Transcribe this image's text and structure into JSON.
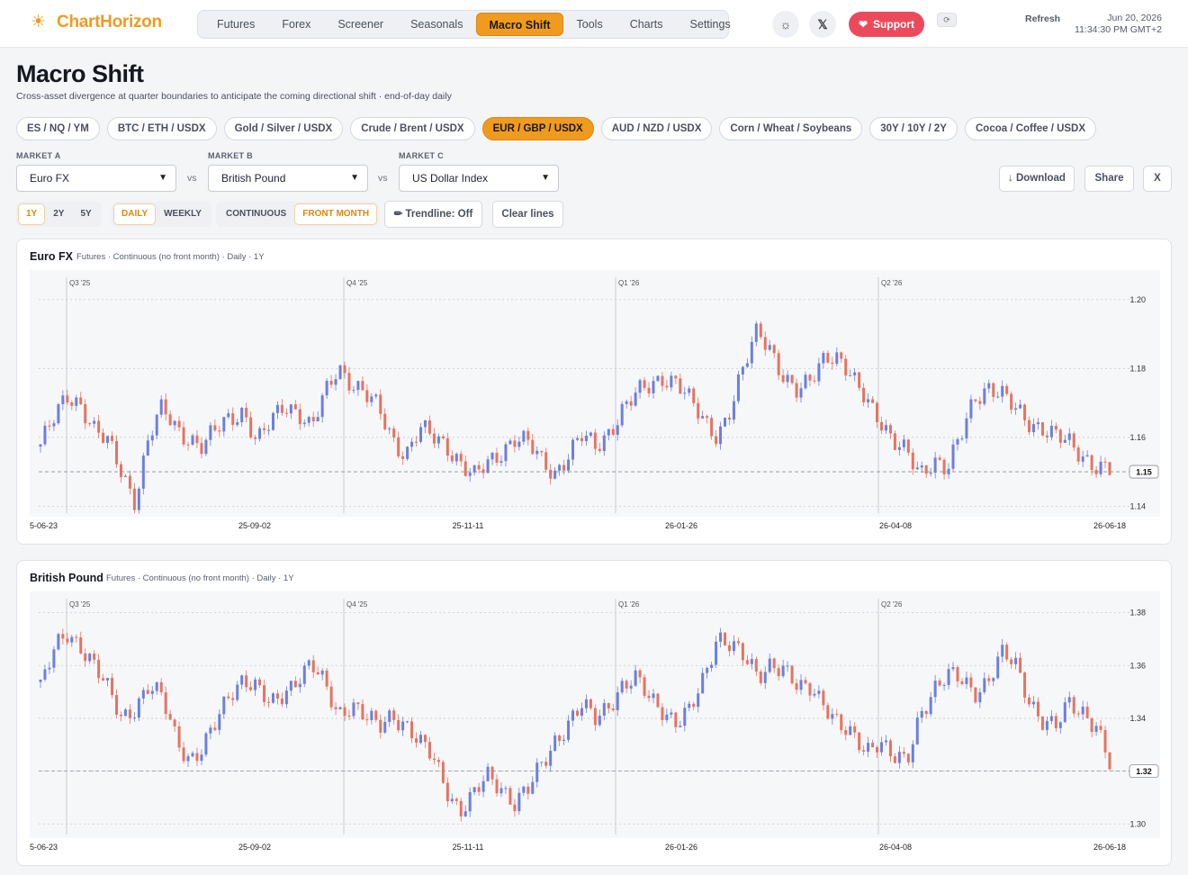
{
  "app": {
    "brand": "ChartHorizon",
    "logo_icon": "sun-icon",
    "accent": "#f19b1e"
  },
  "nav": {
    "items": [
      "Futures",
      "Forex",
      "Screener",
      "Seasonals",
      "Macro Shift",
      "Tools",
      "Charts",
      "Settings"
    ],
    "active": "Macro Shift"
  },
  "header_actions": {
    "theme_icon": "sun-icon",
    "x_icon": "x-logo-icon",
    "support_label": "Support",
    "support_color": "#ec4a5c",
    "refresh_label": "Refresh",
    "refresh_icon": "refresh-icon"
  },
  "datetime": {
    "date": "Jun 20, 2026",
    "time": "11:34:30 PM GMT+2"
  },
  "page": {
    "title": "Macro Shift",
    "subtitle": "Cross-asset divergence at quarter boundaries to anticipate the coming directional shift · end-of-day daily"
  },
  "presets": {
    "items": [
      "ES / NQ / YM",
      "BTC / ETH / USDX",
      "Gold / Silver / USDX",
      "Crude / Brent / USDX",
      "EUR / GBP / USDX",
      "AUD / NZD / USDX",
      "Corn / Wheat / Soybeans",
      "30Y / 10Y / 2Y",
      "Cocoa / Coffee / USDX"
    ],
    "active": "EUR / GBP / USDX"
  },
  "markets": {
    "a_label": "MARKET A",
    "a_value": "Euro FX",
    "b_label": "MARKET B",
    "b_value": "British Pound",
    "c_label": "MARKET C",
    "c_value": "US Dollar Index",
    "vs": "vs"
  },
  "actions": {
    "download": "↓ Download",
    "share": "Share",
    "x": "X"
  },
  "controls": {
    "ranges": [
      "1Y",
      "2Y",
      "5Y"
    ],
    "range_active": "1Y",
    "intervals": [
      "DAILY",
      "WEEKLY"
    ],
    "interval_active": "DAILY",
    "contracts": [
      "CONTINUOUS",
      "FRONT MONTH"
    ],
    "contract_active": "FRONT MONTH",
    "trendline": "✏ Trendline: Off",
    "clear": "Clear lines"
  },
  "colors": {
    "up": "#6b80de",
    "down": "#e8735e",
    "grid": "#c9ccd3"
  },
  "chart_data": [
    {
      "type": "candlestick",
      "title": "Euro FX",
      "subtitle": "Futures · Continuous (no front month) · Daily · 1Y",
      "quarters": [
        "Q3 '25",
        "Q4 '25",
        "Q1 '26",
        "Q2 '26"
      ],
      "x_ticks": [
        "5-06-23",
        "25-09-02",
        "25-11-11",
        "26-01-26",
        "26-04-08",
        "26-06-18"
      ],
      "y_ticks": [
        "1.20",
        "1.18",
        "1.16",
        "1.14"
      ],
      "ylim": [
        1.138,
        1.207
      ],
      "last_price": "1.15",
      "closes": [
        1.158,
        1.165,
        1.172,
        1.17,
        1.162,
        1.158,
        1.15,
        1.142,
        1.16,
        1.168,
        1.163,
        1.16,
        1.157,
        1.162,
        1.166,
        1.168,
        1.158,
        1.164,
        1.17,
        1.168,
        1.162,
        1.172,
        1.181,
        1.176,
        1.172,
        1.168,
        1.16,
        1.155,
        1.162,
        1.16,
        1.158,
        1.153,
        1.148,
        1.152,
        1.156,
        1.16,
        1.158,
        1.153,
        1.15,
        1.155,
        1.16,
        1.157,
        1.162,
        1.168,
        1.172,
        1.175,
        1.178,
        1.176,
        1.17,
        1.165,
        1.161,
        1.168,
        1.18,
        1.192,
        1.186,
        1.176,
        1.172,
        1.178,
        1.185,
        1.182,
        1.176,
        1.172,
        1.166,
        1.158,
        1.155,
        1.15,
        1.154,
        1.15,
        1.16,
        1.172,
        1.175,
        1.172,
        1.168,
        1.165,
        1.163,
        1.16,
        1.158,
        1.155,
        1.152,
        1.15
      ]
    },
    {
      "type": "candlestick",
      "title": "British Pound",
      "subtitle": "Futures · Continuous (no front month) · Daily · 1Y",
      "quarters": [
        "Q3 '25",
        "Q4 '25",
        "Q1 '26",
        "Q2 '26"
      ],
      "x_ticks": [
        "5-06-23",
        "25-09-02",
        "25-11-11",
        "26-01-26",
        "26-04-08",
        "26-06-18"
      ],
      "y_ticks": [
        "1.38",
        "1.36",
        "1.34",
        "1.32",
        "1.30"
      ],
      "ylim": [
        1.296,
        1.386
      ],
      "last_price": "1.32",
      "closes": [
        1.352,
        1.365,
        1.372,
        1.368,
        1.36,
        1.35,
        1.34,
        1.345,
        1.352,
        1.347,
        1.333,
        1.325,
        1.328,
        1.338,
        1.35,
        1.356,
        1.351,
        1.344,
        1.35,
        1.356,
        1.36,
        1.352,
        1.342,
        1.346,
        1.34,
        1.336,
        1.342,
        1.338,
        1.33,
        1.325,
        1.314,
        1.305,
        1.31,
        1.318,
        1.315,
        1.308,
        1.312,
        1.322,
        1.332,
        1.338,
        1.344,
        1.34,
        1.346,
        1.352,
        1.354,
        1.348,
        1.344,
        1.338,
        1.342,
        1.355,
        1.372,
        1.368,
        1.362,
        1.356,
        1.362,
        1.358,
        1.35,
        1.352,
        1.346,
        1.337,
        1.332,
        1.328,
        1.333,
        1.325,
        1.322,
        1.342,
        1.352,
        1.356,
        1.354,
        1.35,
        1.355,
        1.364,
        1.36,
        1.348,
        1.34,
        1.336,
        1.345,
        1.343,
        1.338,
        1.322
      ]
    }
  ]
}
